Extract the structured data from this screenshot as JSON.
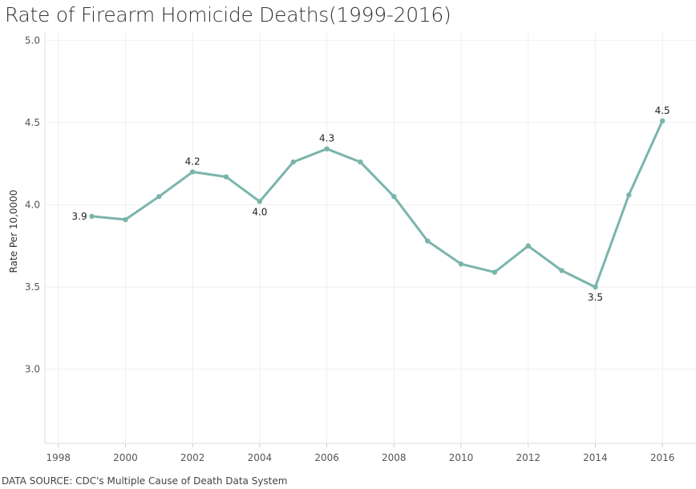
{
  "chart_data": {
    "type": "line",
    "title": "Rate of Firearm Homicide Deaths(1999-2016)",
    "xlabel": "",
    "ylabel": "Rate Per 10,0000",
    "source": "DATA SOURCE: CDC's Multiple Cause of Death Data System",
    "xlim": [
      1997.6,
      2017
    ],
    "ylim": [
      2.55,
      5.05
    ],
    "x_ticks": [
      1998,
      2000,
      2002,
      2004,
      2006,
      2008,
      2010,
      2012,
      2014,
      2016
    ],
    "y_ticks": [
      3.0,
      3.5,
      4.0,
      4.5,
      5.0
    ],
    "y_tick_labels": [
      "3.0",
      "3.5",
      "4.0",
      "4.5",
      "5.0"
    ],
    "grid": true,
    "line_color": "#7ab5ac",
    "series": [
      {
        "x": [
          1999,
          2000,
          2001,
          2002,
          2003,
          2004,
          2005,
          2006,
          2007,
          2008,
          2009,
          2010,
          2011,
          2012,
          2013,
          2014,
          2015,
          2016
        ],
        "values": [
          3.93,
          3.91,
          4.05,
          4.2,
          4.17,
          4.02,
          4.26,
          4.34,
          4.26,
          4.05,
          3.78,
          3.64,
          3.59,
          3.75,
          3.6,
          3.5,
          4.06,
          4.51
        ]
      }
    ],
    "annotations": [
      {
        "x": 1999,
        "text": "3.9",
        "position": "left"
      },
      {
        "x": 2002,
        "text": "4.2",
        "position": "above"
      },
      {
        "x": 2004,
        "text": "4.0",
        "position": "below"
      },
      {
        "x": 2006,
        "text": "4.3",
        "position": "above"
      },
      {
        "x": 2014,
        "text": "3.5",
        "position": "below"
      },
      {
        "x": 2016,
        "text": "4.5",
        "position": "above"
      }
    ]
  }
}
